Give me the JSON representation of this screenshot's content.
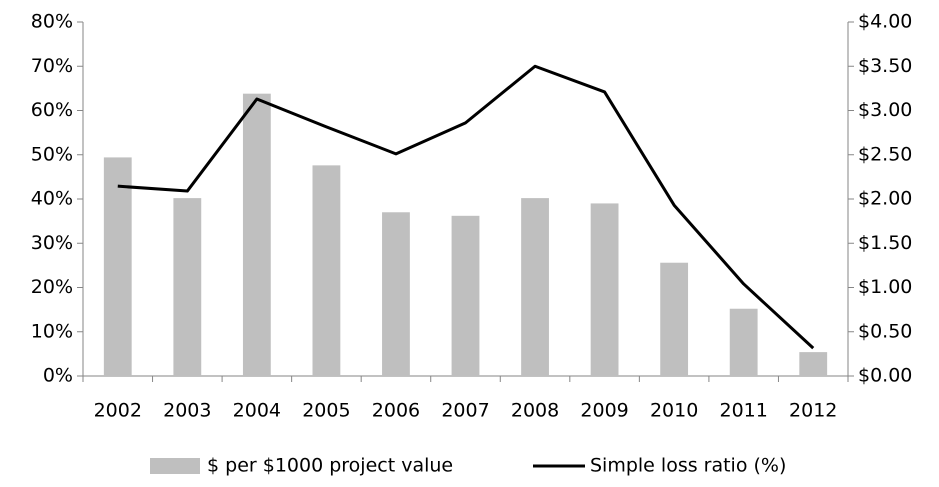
{
  "chart_data": {
    "type": "bar_line",
    "categories": [
      "2002",
      "2003",
      "2004",
      "2005",
      "2006",
      "2007",
      "2008",
      "2009",
      "2010",
      "2011",
      "2012"
    ],
    "series": [
      {
        "name": "$ per $1000 project value",
        "type": "bar",
        "axis": "y2",
        "color": "#bfbfbf",
        "values": [
          2.47,
          2.01,
          3.19,
          2.38,
          1.85,
          1.81,
          2.01,
          1.95,
          1.28,
          0.76,
          0.27
        ]
      },
      {
        "name": "Simple loss ratio (%)",
        "type": "line",
        "axis": "y",
        "color": "#000000",
        "values": [
          42.9,
          41.8,
          62.6,
          56.3,
          50.2,
          57.2,
          70,
          64.2,
          38.6,
          20.8,
          6.3
        ]
      }
    ],
    "ylim": [
      0,
      80
    ],
    "yticks": [
      {
        "value": 0,
        "label": "0%"
      },
      {
        "value": 10,
        "label": "10%"
      },
      {
        "value": 20,
        "label": "20%"
      },
      {
        "value": 30,
        "label": "30%"
      },
      {
        "value": 40,
        "label": "40%"
      },
      {
        "value": 50,
        "label": "50%"
      },
      {
        "value": 60,
        "label": "60%"
      },
      {
        "value": 70,
        "label": "70%"
      },
      {
        "value": 80,
        "label": "80%"
      }
    ],
    "y2lim": [
      0,
      4
    ],
    "y2ticks": [
      {
        "value": 0,
        "label": "$0.00"
      },
      {
        "value": 0.5,
        "label": "$0.50"
      },
      {
        "value": 1,
        "label": "$1.00"
      },
      {
        "value": 1.5,
        "label": "$1.50"
      },
      {
        "value": 2,
        "label": "$2.00"
      },
      {
        "value": 2.5,
        "label": "$2.50"
      },
      {
        "value": 3,
        "label": "$3.00"
      },
      {
        "value": 3.5,
        "label": "$3.50"
      },
      {
        "value": 4,
        "label": "$4.00"
      }
    ],
    "legend": "bottom",
    "grid": false
  }
}
